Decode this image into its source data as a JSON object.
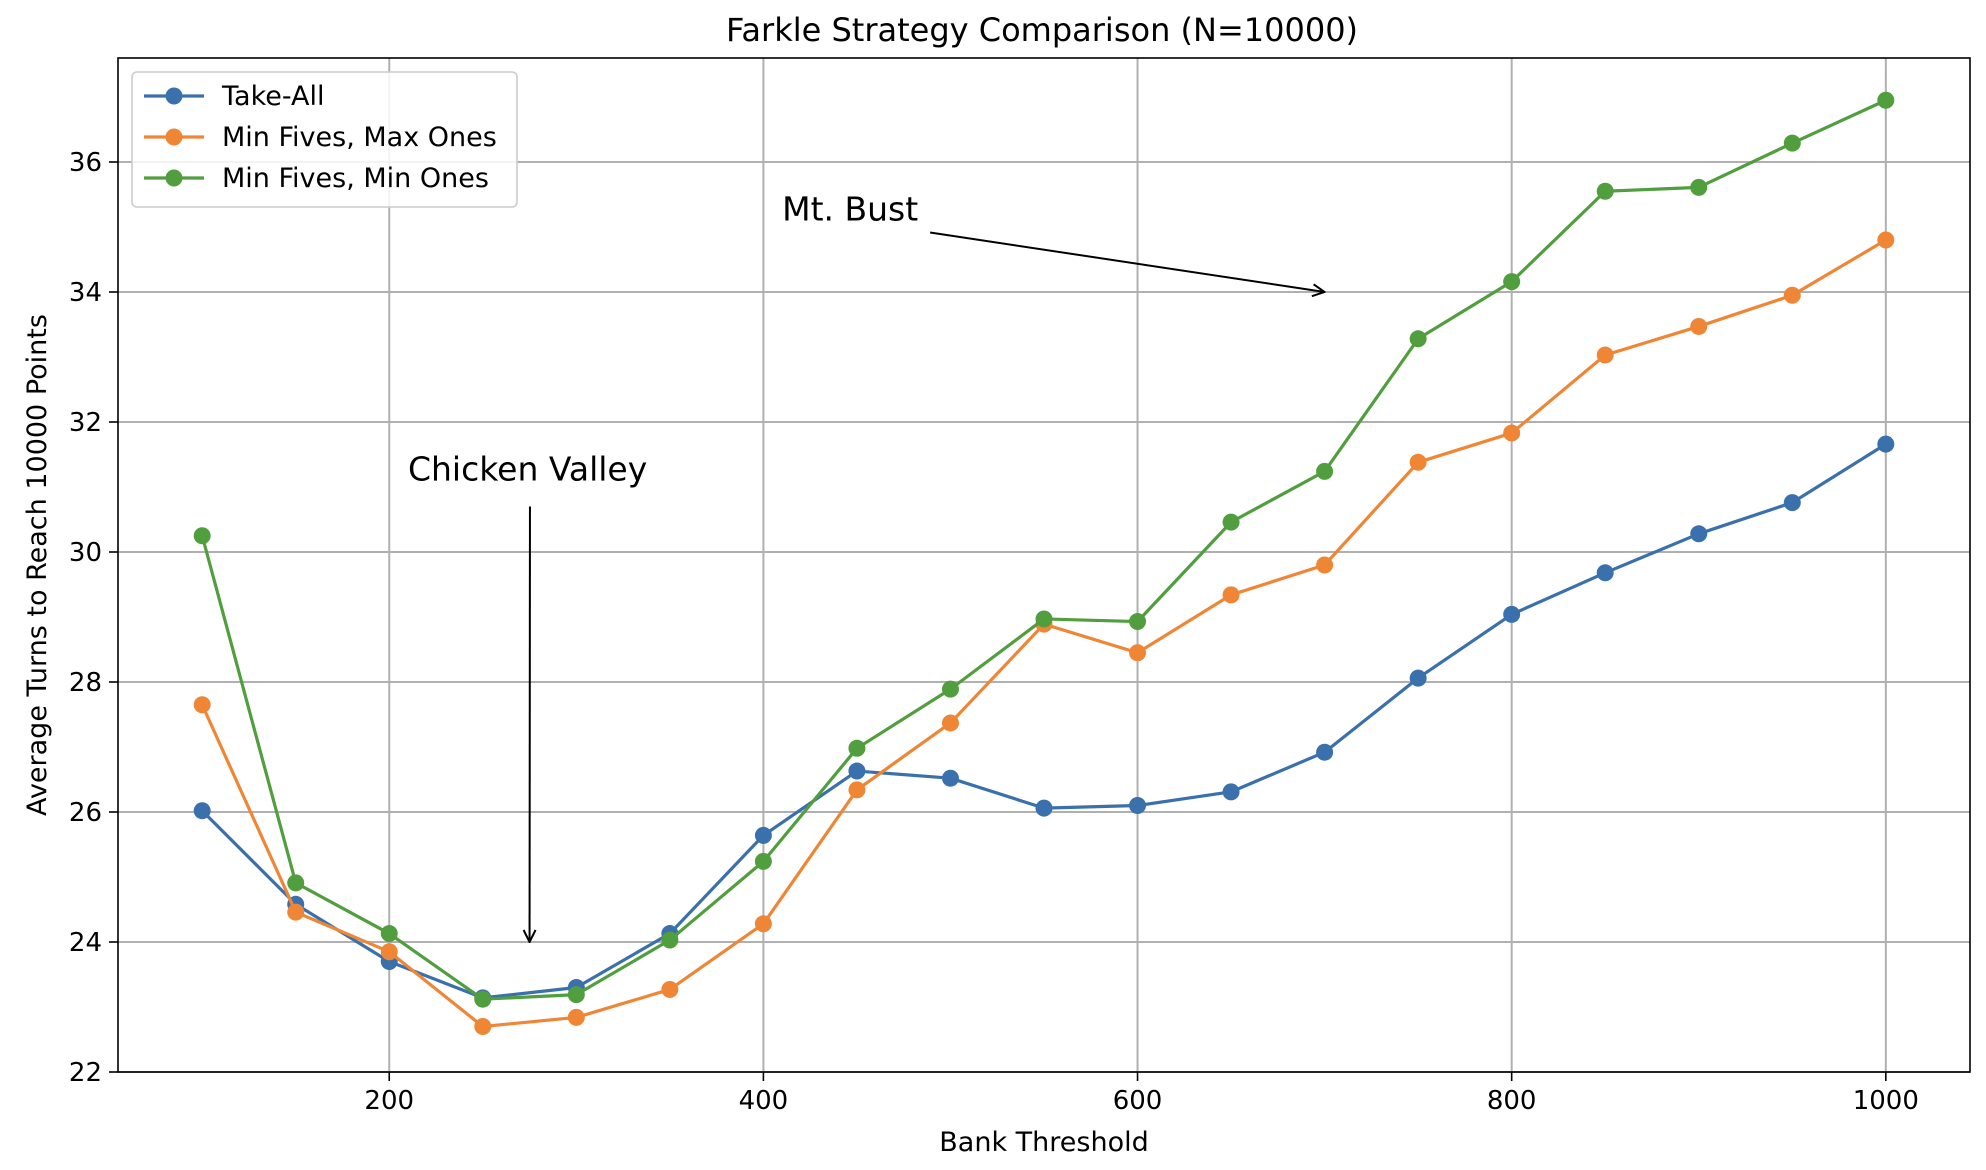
{
  "chart_data": {
    "type": "line",
    "title": "Farkle Strategy Comparison (N=10000)",
    "xlabel": "Bank Threshold",
    "ylabel": "Average Turns to Reach 10000 Points",
    "xlim": [
      55,
      1045
    ],
    "ylim": [
      22,
      37.6
    ],
    "xticks": [
      200,
      400,
      600,
      800,
      1000
    ],
    "yticks": [
      22,
      24,
      26,
      28,
      30,
      32,
      34,
      36
    ],
    "grid": true,
    "legend_position": "top-left",
    "x": [
      100,
      150,
      200,
      250,
      300,
      350,
      400,
      450,
      500,
      550,
      600,
      650,
      700,
      750,
      800,
      850,
      900,
      950,
      1000
    ],
    "series": [
      {
        "name": "Take-All",
        "color": "#3a70ab",
        "values": [
          26.02,
          24.58,
          23.7,
          23.14,
          23.3,
          24.13,
          25.64,
          26.63,
          26.52,
          26.06,
          26.1,
          26.31,
          26.92,
          28.06,
          29.04,
          29.68,
          30.28,
          30.76,
          31.66
        ]
      },
      {
        "name": "Min Fives, Max Ones",
        "color": "#ef8636",
        "values": [
          27.65,
          24.46,
          23.85,
          22.7,
          22.84,
          23.27,
          24.28,
          26.34,
          27.37,
          28.89,
          28.45,
          29.34,
          29.8,
          31.38,
          31.83,
          33.03,
          33.47,
          33.95,
          34.8
        ]
      },
      {
        "name": "Min Fives, Min Ones",
        "color": "#519e3e",
        "values": [
          30.25,
          24.91,
          24.13,
          23.12,
          23.19,
          24.03,
          25.24,
          26.98,
          27.89,
          28.97,
          28.93,
          30.46,
          31.24,
          33.28,
          34.16,
          35.55,
          35.61,
          36.29,
          36.95
        ]
      }
    ],
    "annotations": [
      {
        "text": "Chicken Valley",
        "text_x": 210,
        "text_y": 31.1,
        "arrow_x": 275,
        "arrow_y": 24.0
      },
      {
        "text": "Mt. Bust",
        "text_x": 410,
        "text_y": 35.1,
        "arrow_x": 700,
        "arrow_y": 34.0
      }
    ]
  }
}
